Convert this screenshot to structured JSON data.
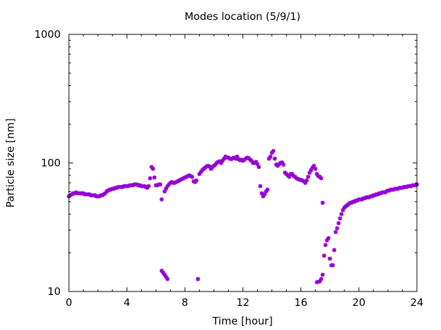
{
  "chart_data": {
    "type": "scatter",
    "title": "Modes location (5/9/1)",
    "xlabel": "Time [hour]",
    "ylabel": "Particle size [nm]",
    "xlim": [
      0,
      24
    ],
    "ylim": [
      10,
      1000
    ],
    "yscale": "log",
    "x_ticks": [
      0,
      4,
      8,
      12,
      16,
      20,
      24
    ],
    "x_tick_labels": [
      "0",
      "4",
      "8",
      "12",
      "16",
      "20",
      "24"
    ],
    "y_ticks": [
      10,
      100,
      1000
    ],
    "y_tick_labels": [
      "10",
      "100",
      "1000"
    ],
    "grid": false,
    "legend": "none",
    "marker_color": "#9400d3",
    "series": [
      {
        "points": [
          [
            0.0,
            55
          ],
          [
            0.1,
            56
          ],
          [
            0.2,
            57
          ],
          [
            0.3,
            58
          ],
          [
            0.4,
            58
          ],
          [
            0.5,
            59
          ],
          [
            0.6,
            58
          ],
          [
            0.7,
            58
          ],
          [
            0.8,
            58
          ],
          [
            0.9,
            58
          ],
          [
            1.0,
            58
          ],
          [
            1.1,
            57
          ],
          [
            1.2,
            57
          ],
          [
            1.3,
            57
          ],
          [
            1.4,
            57
          ],
          [
            1.5,
            56
          ],
          [
            1.6,
            56
          ],
          [
            1.7,
            56
          ],
          [
            1.8,
            56
          ],
          [
            1.9,
            55
          ],
          [
            2.0,
            55
          ],
          [
            2.1,
            55
          ],
          [
            2.2,
            56
          ],
          [
            2.3,
            56
          ],
          [
            2.4,
            57
          ],
          [
            2.5,
            58
          ],
          [
            2.6,
            60
          ],
          [
            2.7,
            61
          ],
          [
            2.8,
            62
          ],
          [
            2.9,
            62
          ],
          [
            3.0,
            63
          ],
          [
            3.1,
            63
          ],
          [
            3.2,
            64
          ],
          [
            3.3,
            64
          ],
          [
            3.4,
            65
          ],
          [
            3.5,
            65
          ],
          [
            3.6,
            65
          ],
          [
            3.7,
            65
          ],
          [
            3.8,
            66
          ],
          [
            3.9,
            66
          ],
          [
            4.0,
            66
          ],
          [
            4.1,
            66
          ],
          [
            4.2,
            67
          ],
          [
            4.3,
            67
          ],
          [
            4.4,
            67
          ],
          [
            4.5,
            68
          ],
          [
            4.6,
            68
          ],
          [
            4.7,
            68
          ],
          [
            4.8,
            67
          ],
          [
            4.9,
            67
          ],
          [
            5.0,
            66
          ],
          [
            5.1,
            66
          ],
          [
            5.2,
            66
          ],
          [
            5.3,
            65
          ],
          [
            5.4,
            64
          ],
          [
            5.5,
            66
          ],
          [
            5.6,
            76
          ],
          [
            5.7,
            93
          ],
          [
            5.8,
            90
          ],
          [
            5.9,
            77
          ],
          [
            6.0,
            67
          ],
          [
            6.1,
            67
          ],
          [
            6.2,
            68
          ],
          [
            6.3,
            68
          ],
          [
            6.4,
            52
          ],
          [
            6.4,
            14.5
          ],
          [
            6.5,
            14
          ],
          [
            6.6,
            13.5
          ],
          [
            6.7,
            13
          ],
          [
            6.8,
            12.5
          ],
          [
            6.6,
            60
          ],
          [
            6.7,
            63
          ],
          [
            6.8,
            66
          ],
          [
            6.9,
            68
          ],
          [
            7.0,
            70
          ],
          [
            7.1,
            71
          ],
          [
            7.2,
            70
          ],
          [
            7.3,
            70
          ],
          [
            7.4,
            71
          ],
          [
            7.5,
            72
          ],
          [
            7.6,
            73
          ],
          [
            7.7,
            74
          ],
          [
            7.8,
            75
          ],
          [
            7.9,
            76
          ],
          [
            8.0,
            77
          ],
          [
            8.1,
            78
          ],
          [
            8.2,
            79
          ],
          [
            8.3,
            80
          ],
          [
            8.4,
            79
          ],
          [
            8.5,
            78
          ],
          [
            8.6,
            72
          ],
          [
            8.7,
            71
          ],
          [
            8.8,
            73
          ],
          [
            8.9,
            12.5
          ],
          [
            9.0,
            82
          ],
          [
            9.1,
            85
          ],
          [
            9.2,
            88
          ],
          [
            9.3,
            90
          ],
          [
            9.4,
            92
          ],
          [
            9.5,
            94
          ],
          [
            9.6,
            95
          ],
          [
            9.7,
            94
          ],
          [
            9.8,
            90
          ],
          [
            9.9,
            93
          ],
          [
            10.0,
            95
          ],
          [
            10.1,
            97
          ],
          [
            10.2,
            100
          ],
          [
            10.3,
            102
          ],
          [
            10.4,
            103
          ],
          [
            10.5,
            100
          ],
          [
            10.6,
            104
          ],
          [
            10.7,
            108
          ],
          [
            10.8,
            112
          ],
          [
            10.9,
            110
          ],
          [
            11.0,
            110
          ],
          [
            11.1,
            108
          ],
          [
            11.2,
            107
          ],
          [
            11.3,
            109
          ],
          [
            11.4,
            110
          ],
          [
            11.5,
            108
          ],
          [
            11.6,
            112
          ],
          [
            11.7,
            107
          ],
          [
            11.8,
            105
          ],
          [
            11.9,
            106
          ],
          [
            12.0,
            104
          ],
          [
            12.1,
            106
          ],
          [
            12.2,
            108
          ],
          [
            12.3,
            110
          ],
          [
            12.4,
            109
          ],
          [
            12.5,
            106
          ],
          [
            12.6,
            104
          ],
          [
            12.7,
            100
          ],
          [
            12.8,
            100
          ],
          [
            12.9,
            102
          ],
          [
            13.0,
            98
          ],
          [
            13.1,
            93
          ],
          [
            13.2,
            66
          ],
          [
            13.3,
            58
          ],
          [
            13.4,
            55
          ],
          [
            13.5,
            57
          ],
          [
            13.6,
            60
          ],
          [
            13.7,
            62
          ],
          [
            13.8,
            108
          ],
          [
            13.9,
            112
          ],
          [
            14.0,
            120
          ],
          [
            14.1,
            124
          ],
          [
            14.2,
            108
          ],
          [
            14.3,
            97
          ],
          [
            14.4,
            95
          ],
          [
            14.5,
            98
          ],
          [
            14.6,
            100
          ],
          [
            14.7,
            101
          ],
          [
            14.8,
            97
          ],
          [
            14.9,
            84
          ],
          [
            15.0,
            82
          ],
          [
            15.1,
            80
          ],
          [
            15.2,
            78
          ],
          [
            15.3,
            82
          ],
          [
            15.4,
            82
          ],
          [
            15.5,
            79
          ],
          [
            15.6,
            78
          ],
          [
            15.7,
            76
          ],
          [
            15.8,
            75
          ],
          [
            15.9,
            74
          ],
          [
            16.0,
            74
          ],
          [
            16.1,
            73
          ],
          [
            16.2,
            72
          ],
          [
            16.3,
            70
          ],
          [
            16.4,
            73
          ],
          [
            16.5,
            78
          ],
          [
            16.6,
            84
          ],
          [
            16.7,
            88
          ],
          [
            16.8,
            92
          ],
          [
            16.9,
            95
          ],
          [
            17.0,
            90
          ],
          [
            17.1,
            82
          ],
          [
            17.2,
            79
          ],
          [
            17.3,
            78
          ],
          [
            17.4,
            76
          ],
          [
            17.5,
            49
          ],
          [
            17.1,
            11.8
          ],
          [
            17.2,
            11.9
          ],
          [
            17.3,
            12.0
          ],
          [
            17.4,
            12.5
          ],
          [
            17.5,
            13.5
          ],
          [
            17.6,
            19
          ],
          [
            17.7,
            23
          ],
          [
            17.8,
            25
          ],
          [
            17.9,
            26
          ],
          [
            18.0,
            18
          ],
          [
            18.1,
            16
          ],
          [
            18.2,
            16
          ],
          [
            18.3,
            21
          ],
          [
            18.4,
            29
          ],
          [
            18.5,
            31
          ],
          [
            18.6,
            34
          ],
          [
            18.7,
            37
          ],
          [
            18.8,
            40
          ],
          [
            18.9,
            43
          ],
          [
            19.0,
            45
          ],
          [
            19.1,
            46
          ],
          [
            19.2,
            47
          ],
          [
            19.3,
            48
          ],
          [
            19.4,
            49
          ],
          [
            19.5,
            49
          ],
          [
            19.6,
            50
          ],
          [
            19.7,
            50
          ],
          [
            19.8,
            51
          ],
          [
            19.9,
            51
          ],
          [
            20.0,
            52
          ],
          [
            20.1,
            52
          ],
          [
            20.2,
            52
          ],
          [
            20.3,
            53
          ],
          [
            20.4,
            53
          ],
          [
            20.5,
            54
          ],
          [
            20.6,
            54
          ],
          [
            20.7,
            54
          ],
          [
            20.8,
            55
          ],
          [
            20.9,
            55
          ],
          [
            21.0,
            56
          ],
          [
            21.1,
            56
          ],
          [
            21.2,
            57
          ],
          [
            21.3,
            57
          ],
          [
            21.4,
            58
          ],
          [
            21.5,
            58
          ],
          [
            21.6,
            59
          ],
          [
            21.7,
            59
          ],
          [
            21.8,
            59
          ],
          [
            21.9,
            60
          ],
          [
            22.0,
            61
          ],
          [
            22.1,
            61
          ],
          [
            22.2,
            62
          ],
          [
            22.3,
            62
          ],
          [
            22.4,
            62
          ],
          [
            22.5,
            63
          ],
          [
            22.6,
            63
          ],
          [
            22.7,
            63
          ],
          [
            22.8,
            64
          ],
          [
            22.9,
            64
          ],
          [
            23.0,
            64
          ],
          [
            23.1,
            65
          ],
          [
            23.2,
            65
          ],
          [
            23.3,
            65
          ],
          [
            23.4,
            66
          ],
          [
            23.5,
            66
          ],
          [
            23.6,
            66
          ],
          [
            23.7,
            67
          ],
          [
            23.8,
            67
          ],
          [
            23.9,
            67
          ],
          [
            24.0,
            68
          ]
        ]
      }
    ]
  }
}
